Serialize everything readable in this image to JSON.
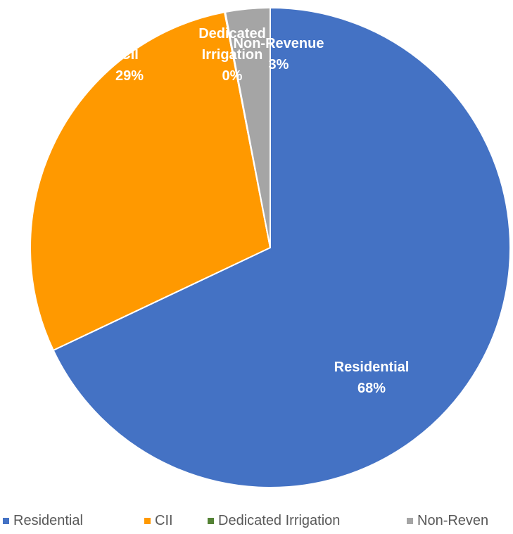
{
  "chart_data": {
    "type": "pie",
    "title": "",
    "slices": [
      {
        "name": "Residential",
        "value": 68,
        "label_name": "Residential",
        "label_pct": "68%",
        "color": "#4472C4"
      },
      {
        "name": "CII",
        "value": 29,
        "label_name": "CII",
        "label_pct": "29%",
        "color": "#FF9900"
      },
      {
        "name": "Dedicated Irrigation",
        "value": 0.05,
        "label_name": "Dedicated Irrigation",
        "label_pct": "0%",
        "color": "#548235"
      },
      {
        "name": "Non-Revenue",
        "value": 3,
        "label_name": "Non-Revenue",
        "label_pct": "3%",
        "color": "#A5A5A5"
      }
    ],
    "legend": {
      "position": "bottom",
      "entries": [
        "Residential",
        "CII",
        "Dedicated Irrigation",
        "Non-Reven"
      ]
    }
  }
}
